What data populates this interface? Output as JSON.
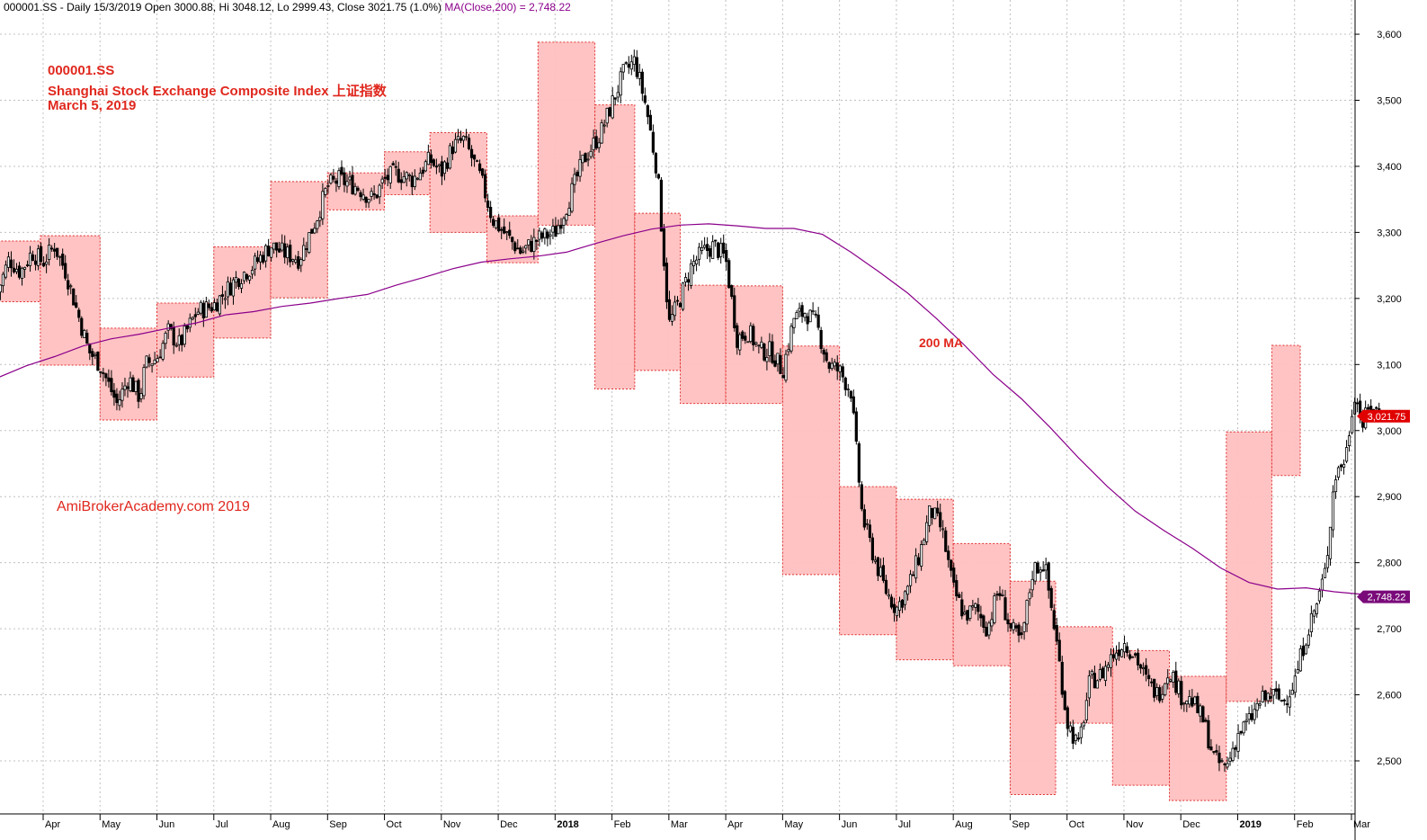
{
  "header": {
    "symbol": "000001.SS",
    "summary": "- Daily 15/3/2019 Open 3000.88, Hi 3048.12, Lo 2999.43, Close 3021.75 (1.0%)",
    "ma_label": "MA(Close,200) = 2,748.22"
  },
  "annotations": {
    "ticker": "000001.SS",
    "name": "Shanghai Stock Exchange Composite Index 上证指数",
    "date": "March 5, 2019",
    "watermark": "AmiBrokerAcademy.com  2019",
    "ma_note": "200 MA"
  },
  "chart_data": {
    "type": "candlestick",
    "title": "000001.SS Shanghai Stock Exchange Composite Index",
    "frequency": "Daily",
    "ylim": [
      2430,
      3640
    ],
    "y_ticks": [
      2500,
      2600,
      2700,
      2800,
      2900,
      3000,
      3100,
      3200,
      3300,
      3400,
      3500,
      3600
    ],
    "y_tick_labels": [
      "2,500",
      "2,600",
      "2,700",
      "2,800",
      "2,900",
      "3,000",
      "3,100",
      "3,200",
      "3,300",
      "3,400",
      "3,500",
      "3,600"
    ],
    "x_ticks": [
      {
        "label": "Apr",
        "month": 3.8
      },
      {
        "label": "May",
        "month": 4.8
      },
      {
        "label": "Jun",
        "month": 5.8
      },
      {
        "label": "Jul",
        "month": 6.8
      },
      {
        "label": "Aug",
        "month": 7.8
      },
      {
        "label": "Sep",
        "month": 8.8
      },
      {
        "label": "Oct",
        "month": 9.8
      },
      {
        "label": "Nov",
        "month": 10.8
      },
      {
        "label": "Dec",
        "month": 11.8
      },
      {
        "label": "2018",
        "month": 12.8,
        "bold": true
      },
      {
        "label": "Feb",
        "month": 13.8
      },
      {
        "label": "Mar",
        "month": 14.8
      },
      {
        "label": "Apr",
        "month": 15.8
      },
      {
        "label": "May",
        "month": 16.8
      },
      {
        "label": "Jun",
        "month": 17.8
      },
      {
        "label": "Jul",
        "month": 18.8
      },
      {
        "label": "Aug",
        "month": 19.8
      },
      {
        "label": "Sep",
        "month": 20.8
      },
      {
        "label": "Oct",
        "month": 21.8
      },
      {
        "label": "Nov",
        "month": 22.8
      },
      {
        "label": "Dec",
        "month": 23.8
      },
      {
        "label": "2019",
        "month": 24.8,
        "bold": true
      },
      {
        "label": "Feb",
        "month": 25.8
      },
      {
        "label": "Mar",
        "month": 26.8
      }
    ],
    "x_range_months": [
      3.0,
      27.5
    ],
    "close_path": [
      [
        3.0,
        3210
      ],
      [
        3.2,
        3260
      ],
      [
        3.4,
        3240
      ],
      [
        3.6,
        3270
      ],
      [
        3.8,
        3255
      ],
      [
        4.0,
        3280
      ],
      [
        4.2,
        3240
      ],
      [
        4.4,
        3180
      ],
      [
        4.6,
        3120
      ],
      [
        4.8,
        3100
      ],
      [
        5.0,
        3060
      ],
      [
        5.1,
        3040
      ],
      [
        5.3,
        3080
      ],
      [
        5.5,
        3050
      ],
      [
        5.6,
        3100
      ],
      [
        5.8,
        3110
      ],
      [
        6.0,
        3150
      ],
      [
        6.2,
        3130
      ],
      [
        6.5,
        3180
      ],
      [
        6.8,
        3190
      ],
      [
        7.0,
        3210
      ],
      [
        7.2,
        3230
      ],
      [
        7.5,
        3250
      ],
      [
        7.8,
        3280
      ],
      [
        8.0,
        3270
      ],
      [
        8.3,
        3260
      ],
      [
        8.6,
        3320
      ],
      [
        8.8,
        3370
      ],
      [
        9.0,
        3380
      ],
      [
        9.3,
        3370
      ],
      [
        9.6,
        3350
      ],
      [
        9.8,
        3380
      ],
      [
        10.0,
        3390
      ],
      [
        10.3,
        3380
      ],
      [
        10.6,
        3410
      ],
      [
        10.8,
        3390
      ],
      [
        11.0,
        3430
      ],
      [
        11.2,
        3440
      ],
      [
        11.5,
        3380
      ],
      [
        11.7,
        3320
      ],
      [
        12.0,
        3290
      ],
      [
        12.2,
        3270
      ],
      [
        12.5,
        3290
      ],
      [
        12.8,
        3300
      ],
      [
        13.0,
        3340
      ],
      [
        13.3,
        3410
      ],
      [
        13.6,
        3450
      ],
      [
        14.0,
        3540
      ],
      [
        14.2,
        3560
      ],
      [
        14.4,
        3490
      ],
      [
        14.6,
        3390
      ],
      [
        14.8,
        3160
      ],
      [
        15.0,
        3200
      ],
      [
        15.2,
        3250
      ],
      [
        15.4,
        3270
      ],
      [
        15.6,
        3280
      ],
      [
        15.8,
        3260
      ],
      [
        16.0,
        3140
      ],
      [
        16.2,
        3150
      ],
      [
        16.4,
        3120
      ],
      [
        16.6,
        3120
      ],
      [
        16.8,
        3090
      ],
      [
        17.0,
        3170
      ],
      [
        17.2,
        3180
      ],
      [
        17.4,
        3160
      ],
      [
        17.6,
        3100
      ],
      [
        17.8,
        3090
      ],
      [
        18.0,
        3060
      ],
      [
        18.2,
        2870
      ],
      [
        18.4,
        2810
      ],
      [
        18.6,
        2760
      ],
      [
        18.8,
        2730
      ],
      [
        19.0,
        2760
      ],
      [
        19.2,
        2810
      ],
      [
        19.4,
        2880
      ],
      [
        19.6,
        2850
      ],
      [
        19.8,
        2760
      ],
      [
        20.0,
        2720
      ],
      [
        20.2,
        2730
      ],
      [
        20.4,
        2700
      ],
      [
        20.6,
        2760
      ],
      [
        20.8,
        2700
      ],
      [
        21.0,
        2680
      ],
      [
        21.2,
        2790
      ],
      [
        21.4,
        2800
      ],
      [
        21.6,
        2690
      ],
      [
        21.8,
        2560
      ],
      [
        22.0,
        2520
      ],
      [
        22.2,
        2620
      ],
      [
        22.4,
        2630
      ],
      [
        22.6,
        2660
      ],
      [
        22.8,
        2680
      ],
      [
        23.0,
        2660
      ],
      [
        23.2,
        2620
      ],
      [
        23.4,
        2600
      ],
      [
        23.6,
        2640
      ],
      [
        23.8,
        2600
      ],
      [
        24.0,
        2590
      ],
      [
        24.2,
        2560
      ],
      [
        24.4,
        2500
      ],
      [
        24.6,
        2490
      ],
      [
        24.8,
        2540
      ],
      [
        25.0,
        2560
      ],
      [
        25.2,
        2590
      ],
      [
        25.4,
        2600
      ],
      [
        25.6,
        2590
      ],
      [
        25.8,
        2620
      ],
      [
        26.0,
        2690
      ],
      [
        26.2,
        2740
      ],
      [
        26.35,
        2790
      ],
      [
        26.5,
        2930
      ],
      [
        26.7,
        2960
      ],
      [
        26.85,
        3060
      ],
      [
        27.0,
        3010
      ],
      [
        27.15,
        3040
      ],
      [
        27.3,
        3022
      ]
    ],
    "ma200": [
      [
        3.0,
        3080
      ],
      [
        3.5,
        3098
      ],
      [
        4.0,
        3112
      ],
      [
        4.5,
        3128
      ],
      [
        5.0,
        3139
      ],
      [
        5.5,
        3146
      ],
      [
        6.0,
        3155
      ],
      [
        6.5,
        3163
      ],
      [
        7.0,
        3175
      ],
      [
        7.5,
        3180
      ],
      [
        8.0,
        3188
      ],
      [
        8.5,
        3193
      ],
      [
        9.0,
        3200
      ],
      [
        9.5,
        3206
      ],
      [
        10.0,
        3220
      ],
      [
        10.5,
        3232
      ],
      [
        11.0,
        3245
      ],
      [
        11.5,
        3255
      ],
      [
        12.0,
        3260
      ],
      [
        12.5,
        3264
      ],
      [
        13.0,
        3270
      ],
      [
        13.5,
        3283
      ],
      [
        14.0,
        3295
      ],
      [
        14.5,
        3305
      ],
      [
        15.0,
        3311
      ],
      [
        15.5,
        3313
      ],
      [
        16.0,
        3310
      ],
      [
        16.5,
        3306
      ],
      [
        17.0,
        3306
      ],
      [
        17.5,
        3297
      ],
      [
        18.0,
        3270
      ],
      [
        18.5,
        3240
      ],
      [
        19.0,
        3208
      ],
      [
        19.5,
        3170
      ],
      [
        20.0,
        3129
      ],
      [
        20.5,
        3085
      ],
      [
        21.0,
        3048
      ],
      [
        21.5,
        3005
      ],
      [
        22.0,
        2959
      ],
      [
        22.5,
        2916
      ],
      [
        23.0,
        2878
      ],
      [
        23.5,
        2849
      ],
      [
        24.0,
        2822
      ],
      [
        24.5,
        2792
      ],
      [
        25.0,
        2770
      ],
      [
        25.5,
        2760
      ],
      [
        26.0,
        2762
      ],
      [
        26.5,
        2756
      ],
      [
        27.0,
        2752
      ],
      [
        27.3,
        2748
      ]
    ],
    "range_boxes": [
      {
        "m0": 3.0,
        "m1": 3.75,
        "lo": 3195,
        "hi": 3287
      },
      {
        "m0": 3.75,
        "m1": 4.8,
        "lo": 3099,
        "hi": 3295
      },
      {
        "m0": 4.8,
        "m1": 5.8,
        "lo": 3016,
        "hi": 3155
      },
      {
        "m0": 5.8,
        "m1": 6.8,
        "lo": 3081,
        "hi": 3193
      },
      {
        "m0": 6.8,
        "m1": 7.8,
        "lo": 3140,
        "hi": 3278
      },
      {
        "m0": 7.8,
        "m1": 8.8,
        "lo": 3201,
        "hi": 3377
      },
      {
        "m0": 8.8,
        "m1": 9.8,
        "lo": 3334,
        "hi": 3390
      },
      {
        "m0": 9.8,
        "m1": 10.6,
        "lo": 3357,
        "hi": 3422
      },
      {
        "m0": 10.6,
        "m1": 11.6,
        "lo": 3300,
        "hi": 3451
      },
      {
        "m0": 11.6,
        "m1": 12.5,
        "lo": 3254,
        "hi": 3325
      },
      {
        "m0": 12.5,
        "m1": 13.5,
        "lo": 3311,
        "hi": 3588
      },
      {
        "m0": 13.5,
        "m1": 14.2,
        "lo": 3063,
        "hi": 3493
      },
      {
        "m0": 14.2,
        "m1": 15.0,
        "lo": 3091,
        "hi": 3329
      },
      {
        "m0": 15.0,
        "m1": 15.8,
        "lo": 3041,
        "hi": 3220
      },
      {
        "m0": 15.8,
        "m1": 16.8,
        "lo": 3041,
        "hi": 3219
      },
      {
        "m0": 16.8,
        "m1": 17.8,
        "lo": 2782,
        "hi": 3128
      },
      {
        "m0": 17.8,
        "m1": 18.8,
        "lo": 2691,
        "hi": 2915
      },
      {
        "m0": 18.8,
        "m1": 19.8,
        "lo": 2653,
        "hi": 2896
      },
      {
        "m0": 19.8,
        "m1": 20.8,
        "lo": 2644,
        "hi": 2829
      },
      {
        "m0": 20.8,
        "m1": 21.6,
        "lo": 2449,
        "hi": 2772
      },
      {
        "m0": 21.6,
        "m1": 22.6,
        "lo": 2557,
        "hi": 2703
      },
      {
        "m0": 22.6,
        "m1": 23.6,
        "lo": 2463,
        "hi": 2667
      },
      {
        "m0": 23.6,
        "m1": 24.6,
        "lo": 2440,
        "hi": 2628
      },
      {
        "m0": 24.6,
        "m1": 25.4,
        "lo": 2590,
        "hi": 2998
      },
      {
        "m0": 25.4,
        "m1": 25.9,
        "lo": 2932,
        "hi": 3129
      }
    ],
    "last_close": {
      "value": 3021.75,
      "label": "3,021.75"
    },
    "ma_last": {
      "value": 2748.22,
      "label": "2,748.22"
    },
    "colors": {
      "candle": "#000000",
      "ma": "#8b008b",
      "box_fill": "#ffc0c0",
      "box_border": "#e03030",
      "grid": "#c0c0c0",
      "close_marker": "#e00000",
      "ma_marker": "#7a0a7a"
    },
    "grid": true
  }
}
